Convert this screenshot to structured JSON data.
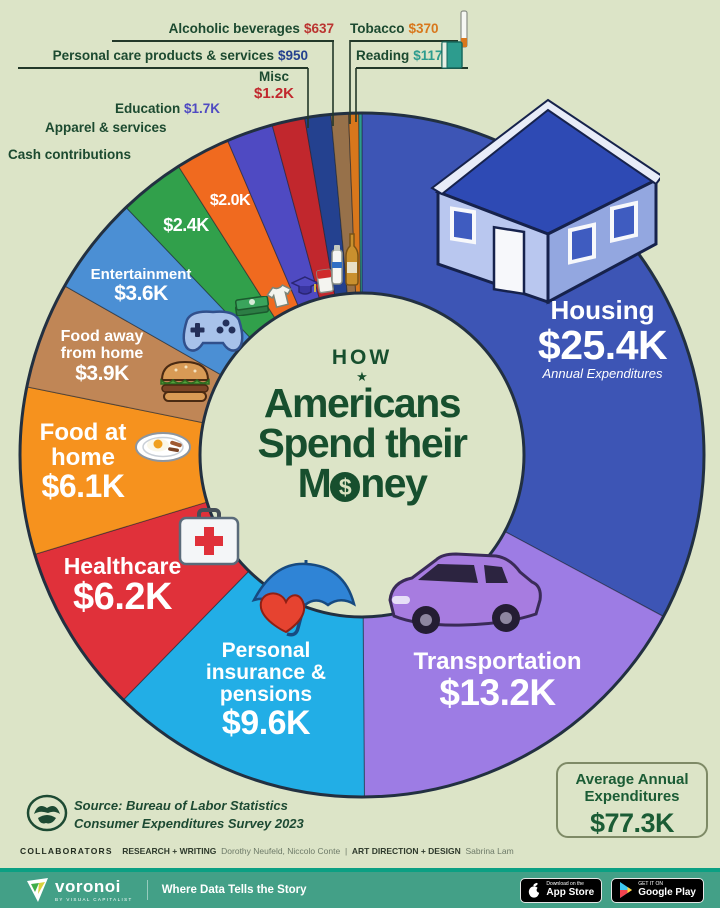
{
  "page": {
    "background": "#dce4c7",
    "outline": "#223041"
  },
  "chart_data": {
    "type": "donut",
    "title": "How Americans Spend their Money",
    "start_angle_deg": -90,
    "direction": "clockwise",
    "total_display": "$77.3K",
    "annotation": "Annual Expenditures",
    "slices": [
      {
        "id": "housing",
        "label": "Housing",
        "display_value": "$25.4K",
        "value": 25400,
        "color": "#3d55b5"
      },
      {
        "id": "transportation",
        "label": "Transportation",
        "display_value": "$13.2K",
        "value": 13200,
        "color": "#9d7ce4"
      },
      {
        "id": "personal-insurance",
        "label": "Personal insurance & pensions",
        "display_value": "$9.6K",
        "value": 9600,
        "color": "#22aee6"
      },
      {
        "id": "healthcare",
        "label": "Healthcare",
        "display_value": "$6.2K",
        "value": 6200,
        "color": "#e0313a"
      },
      {
        "id": "food-at-home",
        "label": "Food at home",
        "display_value": "$6.1K",
        "value": 6100,
        "color": "#f6921e"
      },
      {
        "id": "food-away-from-home",
        "label": "Food away from home",
        "display_value": "$3.9K",
        "value": 3900,
        "color": "#c08656"
      },
      {
        "id": "entertainment",
        "label": "Entertainment",
        "display_value": "$3.6K",
        "value": 3600,
        "color": "#4b8fd4"
      },
      {
        "id": "cash-contributions",
        "label": "Cash contributions",
        "display_value": "$2.4K",
        "value": 2400,
        "color": "#31a04b"
      },
      {
        "id": "apparel-services",
        "label": "Apparel & services",
        "display_value": "$2.0K",
        "value": 2000,
        "color": "#f06a1f"
      },
      {
        "id": "education",
        "label": "Education",
        "display_value": "$1.7K",
        "value": 1700,
        "color": "#4f4ac2"
      },
      {
        "id": "misc",
        "label": "Misc",
        "display_value": "$1.2K",
        "value": 1200,
        "color": "#c1272d"
      },
      {
        "id": "personal-care",
        "label": "Personal care products & services",
        "display_value": "$950",
        "value": 950,
        "color": "#24418f"
      },
      {
        "id": "alcoholic-beverages",
        "label": "Alcoholic beverages",
        "display_value": "$637",
        "value": 637,
        "color": "#97714a"
      },
      {
        "id": "tobacco",
        "label": "Tobacco",
        "display_value": "$370",
        "value": 370,
        "color": "#d8771c"
      },
      {
        "id": "reading",
        "label": "Reading",
        "display_value": "$117",
        "value": 117,
        "color": "#2d9c8e"
      }
    ],
    "callout_value_colors": {
      "alcoholic": "#bb3430",
      "tobacco": "#d8771c",
      "personal_care": "#24418f",
      "reading": "#2d9c8e",
      "misc": "#c1272d",
      "education": "#4f4ac2"
    }
  },
  "center_title": {
    "how": "HOW",
    "star": "★",
    "line1": "Americans",
    "line2": "Spend their",
    "money_pre": "M",
    "money_coin": "$",
    "money_post": "ney"
  },
  "average_box": {
    "line1": "Average Annual",
    "line2": "Expenditures",
    "value": "$77.3K"
  },
  "source": {
    "line1": "Source: Bureau of Labor Statistics",
    "line2": "Consumer Expenditures Survey 2023"
  },
  "collaborators": {
    "heading": "COLLABORATORS",
    "research_label": "RESEARCH + WRITING",
    "research_names": "Dorothy Neufeld, Niccolo Conte",
    "divider": "|",
    "design_label": "ART DIRECTION + DESIGN",
    "design_names": "Sabrina Lam"
  },
  "footer": {
    "brand": "voronoi",
    "brand_sub": "BY VISUAL CAPITALIST",
    "tagline": "Where Data Tells the Story",
    "appstore_top": "Download on the",
    "appstore_bottom": "App Store",
    "gplay_top": "GET IT ON",
    "gplay_bottom": "Google Play"
  }
}
